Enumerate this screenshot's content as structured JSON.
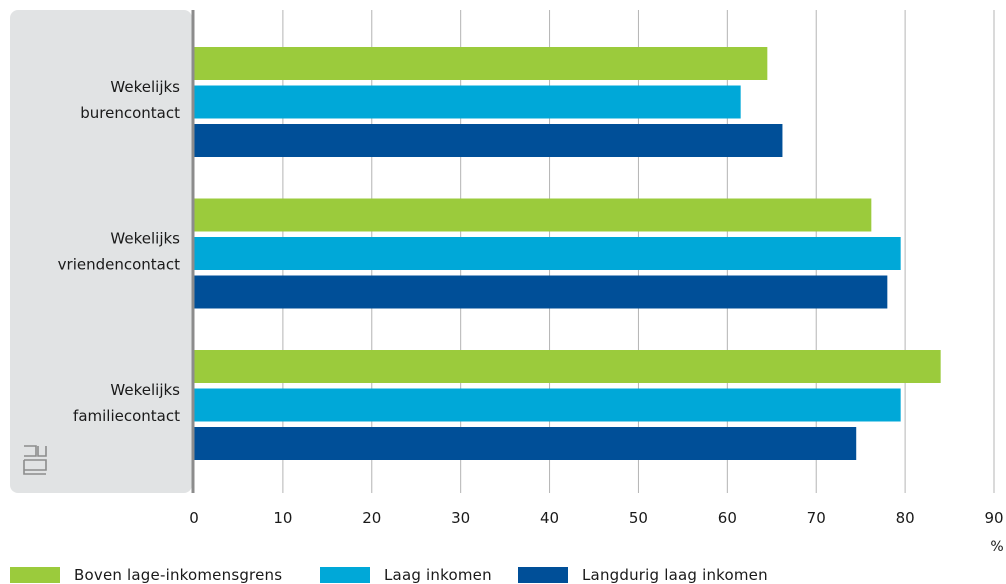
{
  "chart_data": {
    "type": "bar",
    "orientation": "horizontal",
    "categories": [
      "Wekelijks burencontact",
      "Wekelijks vriendencontact",
      "Wekelijks familiecontact"
    ],
    "category_lines": [
      [
        "Wekelijks",
        "burencontact"
      ],
      [
        "Wekelijks",
        "vriendencontact"
      ],
      [
        "Wekelijks",
        "familiecontact"
      ]
    ],
    "series": [
      {
        "name": "Boven lage-inkomensgrens",
        "color": "#9bcb3c",
        "values": [
          64.5,
          76.2,
          84.0
        ]
      },
      {
        "name": "Laag inkomen",
        "color": "#00a8d8",
        "values": [
          61.5,
          79.5,
          79.5
        ]
      },
      {
        "name": "Langdurig laag inkomen",
        "color": "#004f98",
        "values": [
          66.2,
          78.0,
          74.5
        ]
      }
    ],
    "xlim": [
      0,
      90
    ],
    "xticks": [
      0,
      10,
      20,
      30,
      40,
      50,
      60,
      70,
      80,
      90
    ],
    "xunit": "%",
    "grid": true,
    "legend_position": "bottom"
  },
  "colors": {
    "label_panel": "#e1e3e4",
    "axis_line": "#8c8c8c",
    "gridline": "#b4b4b4",
    "logo": "#8c8c8c"
  },
  "logo_icon": "cbs-logo-icon"
}
